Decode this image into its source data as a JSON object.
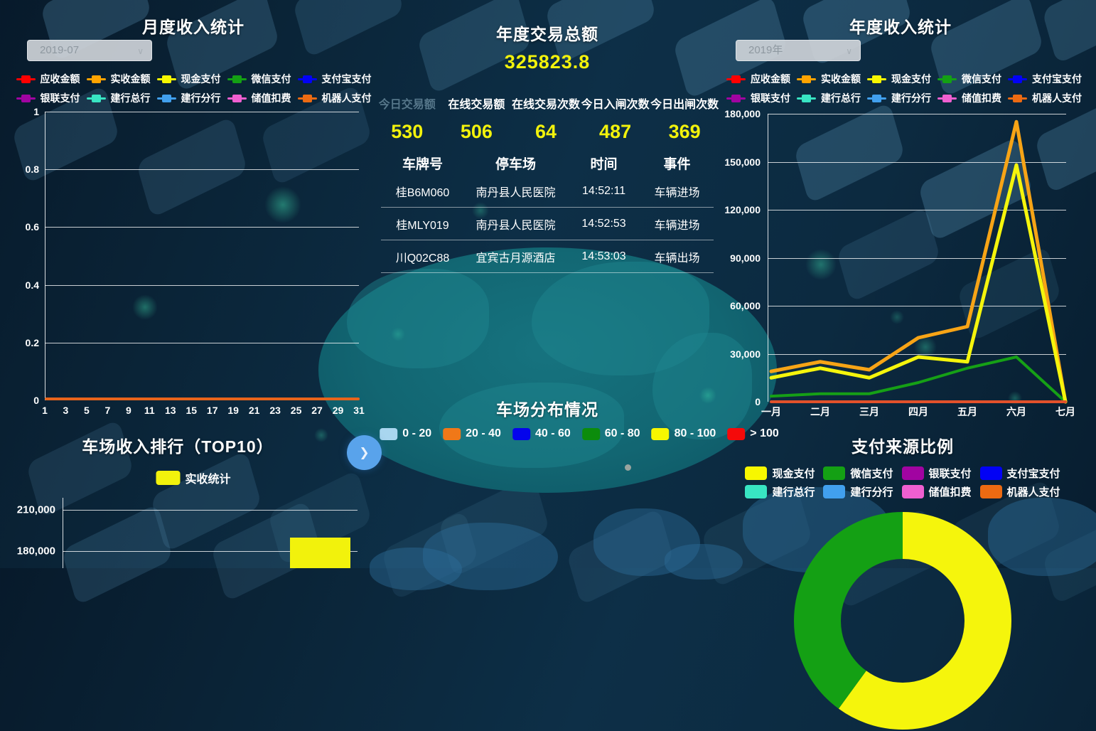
{
  "selects": {
    "month": "2019-07",
    "year": "2019年"
  },
  "icons": {
    "dropdown_chevron": "∨",
    "next_arrow": "❯"
  },
  "series_legend": [
    {
      "label": "应收金额",
      "color": "#ff0000"
    },
    {
      "label": "实收金额",
      "color": "#ffa400"
    },
    {
      "label": "现金支付",
      "color": "#f7f700"
    },
    {
      "label": "微信支付",
      "color": "#14a014"
    },
    {
      "label": "支付宝支付",
      "color": "#0202f5"
    },
    {
      "label": "银联支付",
      "color": "#a104a1"
    },
    {
      "label": "建行总行",
      "color": "#38e5c3"
    },
    {
      "label": "建行分行",
      "color": "#41a0ee"
    },
    {
      "label": "储值扣费",
      "color": "#f05fd0"
    },
    {
      "label": "机器人支付",
      "color": "#ec6a12"
    }
  ],
  "center": {
    "total_title": "年度交易总额",
    "total_value": "325823.8",
    "stats": [
      {
        "label": "今日交易额",
        "value": "530",
        "dim": true
      },
      {
        "label": "在线交易额",
        "value": "506"
      },
      {
        "label": "在线交易次数",
        "value": "64"
      },
      {
        "label": "今日入闸次数",
        "value": "487"
      },
      {
        "label": "今日出闸次数",
        "value": "369"
      }
    ],
    "table": {
      "headers": [
        "车牌号",
        "停车场",
        "时间",
        "事件"
      ],
      "rows": [
        [
          "桂B6M060",
          "南丹县人民医院",
          "14:52:11",
          "车辆进场"
        ],
        [
          "桂MLY019",
          "南丹县人民医院",
          "14:52:53",
          "车辆进场"
        ],
        [
          "川Q02C88",
          "宜宾古月源酒店",
          "14:53:03",
          "车辆出场"
        ]
      ]
    }
  },
  "payment_panel": {
    "title": "支付来源比例",
    "legend": [
      {
        "label": "现金支付",
        "color": "#f7f700"
      },
      {
        "label": "微信支付",
        "color": "#14a014"
      },
      {
        "label": "银联支付",
        "color": "#a104a1"
      },
      {
        "label": "支付宝支付",
        "color": "#0202f5"
      },
      {
        "label": "建行总行",
        "color": "#38e5c3"
      },
      {
        "label": "建行分行",
        "color": "#41a0ee"
      },
      {
        "label": "储值扣费",
        "color": "#f05fd0"
      },
      {
        "label": "机器人支付",
        "color": "#ec6a12"
      }
    ]
  },
  "top10_panel": {
    "title": "车场收入排行（TOP10）",
    "legend": [
      {
        "label": "实收统计",
        "color": "#f2f20c"
      }
    ]
  },
  "chart_data": [
    {
      "id": "monthly_income",
      "type": "line",
      "title": "月度收入统计",
      "period": "2019-07",
      "x_tick_labels": [
        1,
        3,
        5,
        7,
        9,
        11,
        13,
        15,
        17,
        19,
        21,
        23,
        25,
        27,
        29,
        31
      ],
      "x_range": [
        1,
        31
      ],
      "ylim": [
        0,
        1
      ],
      "yticks": [
        0,
        0.2,
        0.4,
        0.6,
        0.8,
        1
      ],
      "series_names": [
        "应收金额",
        "实收金额",
        "现金支付",
        "微信支付",
        "支付宝支付",
        "银联支付",
        "建行总行",
        "建行分行",
        "储值扣费",
        "机器人支付"
      ],
      "all_series_constant_value": 0,
      "baseline_visible_color": "#e8641b",
      "grid": true,
      "legend_position": "top"
    },
    {
      "id": "annual_income",
      "type": "line",
      "title": "年度收入统计",
      "period": "2019年",
      "categories": [
        "一月",
        "二月",
        "三月",
        "四月",
        "五月",
        "六月",
        "七月"
      ],
      "ylim": [
        0,
        180000
      ],
      "yticks": [
        0,
        30000,
        60000,
        90000,
        120000,
        150000,
        180000
      ],
      "series": [
        {
          "name": "实收金额",
          "color": "#f7a416",
          "values": [
            19000,
            25000,
            20000,
            40000,
            47000,
            175000,
            0
          ]
        },
        {
          "name": "现金支付",
          "color": "#f5f50c",
          "values": [
            15000,
            21000,
            15000,
            28000,
            25000,
            148000,
            0
          ]
        },
        {
          "name": "微信支付",
          "color": "#16a016",
          "values": [
            3500,
            5000,
            5000,
            12000,
            21000,
            28000,
            0
          ]
        },
        {
          "name": "其余系列(应收金额/支付宝支付/银联支付/建行总行/建行分行/储值扣费/机器人支付)",
          "color": "#e2512b",
          "values": [
            0,
            0,
            0,
            0,
            0,
            0,
            0
          ]
        }
      ],
      "grid": true,
      "legend_position": "top"
    },
    {
      "id": "parking_income_top10",
      "type": "bar",
      "title": "车场收入排行（TOP10）",
      "series_name": "实收统计",
      "bar_color": "#f2f20c",
      "visible_yticks": [
        210000,
        180000
      ],
      "visible_bars": [
        {
          "value": 190000
        }
      ],
      "note": "chart clipped by bottom of screen; one yellow bar visible at ~190,000"
    },
    {
      "id": "payment_source_ratio",
      "type": "pie",
      "title": "支付来源比例",
      "visible_slices": [
        {
          "name": "现金支付",
          "color": "#f5f50c",
          "approx_pct": 60
        },
        {
          "name": "微信支付",
          "color": "#14a014",
          "approx_pct": 40
        }
      ],
      "note": "donut clipped by bottom of screen; only top arc visible"
    },
    {
      "id": "parking_distribution",
      "type": "map",
      "title": "车场分布情况",
      "legend_ranges": [
        {
          "label": "0 - 20",
          "color": "#a9d6ef"
        },
        {
          "label": "20 - 40",
          "color": "#f07818"
        },
        {
          "label": "40 - 60",
          "color": "#0404ec"
        },
        {
          "label": "60 - 80",
          "color": "#0c8c0c"
        },
        {
          "label": "80 - 100",
          "color": "#f7f700"
        },
        {
          "label": "> 100",
          "color": "#f50a0a"
        }
      ],
      "note": "map itself is below the fold; only faint outline visible at bottom"
    }
  ]
}
